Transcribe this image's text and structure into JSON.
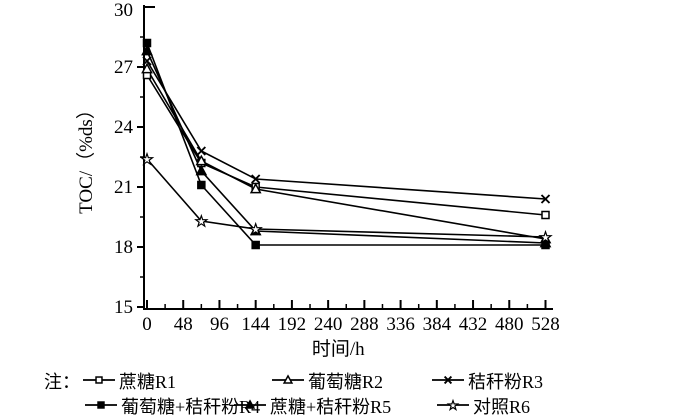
{
  "chart_data": {
    "type": "line",
    "title": "",
    "xlabel": "时间/h",
    "ylabel": "TOC/（%ds）",
    "xlim": [
      0,
      528
    ],
    "ylim": [
      15,
      30
    ],
    "xticks": [
      0,
      48,
      96,
      144,
      192,
      240,
      288,
      336,
      384,
      432,
      480,
      528
    ],
    "yticks": [
      15,
      18,
      21,
      24,
      27,
      30
    ],
    "x_minor_ticks": [
      24,
      72,
      120,
      168,
      216,
      264,
      312,
      360,
      408,
      456,
      504
    ],
    "y_minor_ticks": [
      16.5,
      19.5,
      22.5,
      25.5,
      28.5
    ],
    "grid": false,
    "line_color": "#000000",
    "background_color": "#ffffff",
    "legend_position": "bottom",
    "x": [
      0,
      72,
      144,
      528
    ],
    "series": [
      {
        "name": "蔗糖R1",
        "marker": "square-open",
        "values": [
          26.6,
          22.2,
          21.0,
          19.6
        ]
      },
      {
        "name": "葡萄糖R2",
        "marker": "triangle-open",
        "values": [
          26.9,
          22.3,
          20.9,
          18.4
        ]
      },
      {
        "name": "秸秆粉R3",
        "marker": "x",
        "values": [
          27.3,
          22.8,
          21.4,
          20.4
        ]
      },
      {
        "name": "葡萄糖+秸秆粉R4",
        "marker": "square-filled",
        "values": [
          28.2,
          21.1,
          18.1,
          18.1
        ]
      },
      {
        "name": "蔗糖+秸秆粉R5",
        "marker": "triangle-filled",
        "values": [
          27.8,
          21.8,
          18.8,
          18.2
        ]
      },
      {
        "name": "对照R6",
        "marker": "star-open",
        "values": [
          22.4,
          19.3,
          18.9,
          18.5
        ]
      }
    ]
  },
  "legend": {
    "note_label": "注："
  }
}
